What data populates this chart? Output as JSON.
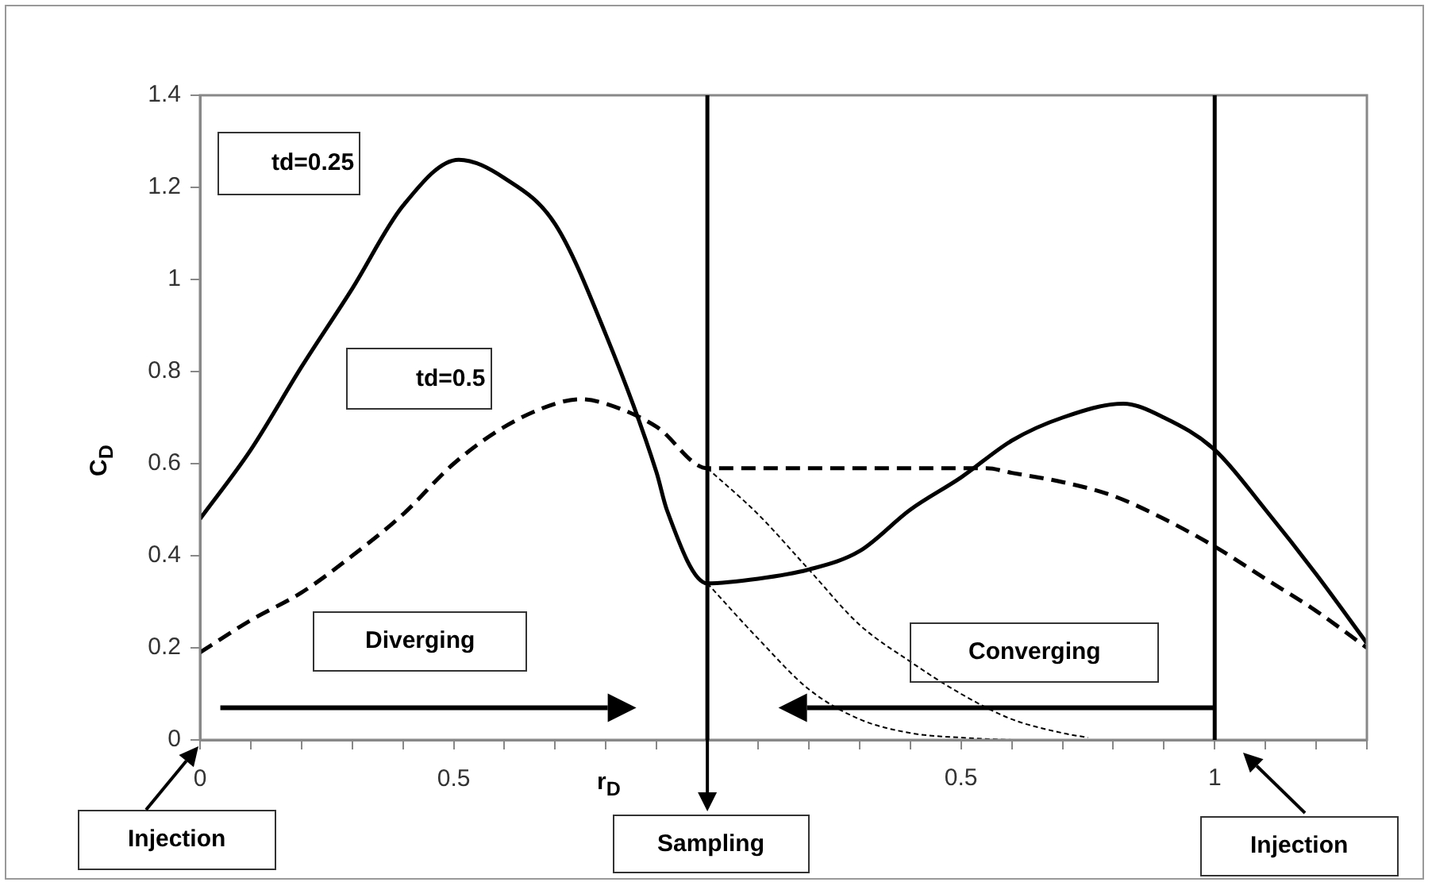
{
  "chart_data": {
    "type": "line",
    "xlabel": "r$_{D}$",
    "ylabel": "C$_{D}$",
    "xlim": [
      0,
      2.3
    ],
    "ylim": [
      0,
      1.4
    ],
    "xticks": [
      0,
      {
        "value": 0.1,
        "label": null
      },
      {
        "value": 0.2,
        "label": null
      },
      {
        "value": 0.3,
        "label": null
      },
      {
        "value": 0.4,
        "label": null
      },
      0.5,
      {
        "value": 0.6,
        "label": null
      },
      {
        "value": 0.7,
        "label": null
      },
      {
        "value": 0.8,
        "label": null
      },
      {
        "value": 0.9,
        "label": null
      },
      {
        "value": 1,
        "label": null
      },
      {
        "value": 1.1,
        "label": null
      },
      {
        "value": 1.2,
        "label": null
      },
      {
        "value": 1.3,
        "label": null
      },
      {
        "value": 1.4,
        "label": null
      },
      {
        "value": 1.5,
        "label": null
      },
      {
        "value": 1.6,
        "label": null
      },
      {
        "value": 1.7,
        "label": null
      },
      {
        "value": 1.8,
        "label": null
      },
      {
        "value": 1.9,
        "label": null
      },
      {
        "value": 2,
        "label": null
      },
      {
        "value": 2.1,
        "label": null
      },
      {
        "value": 2.2,
        "label": null
      },
      {
        "value": 2.3,
        "label": null
      }
    ],
    "x2lim": [
      -1,
      1.3
    ],
    "x2ticks": [
      0.5,
      1
    ],
    "yticks": [
      0,
      0.2,
      0.4,
      0.6,
      0.8,
      1,
      1.2,
      1.4
    ],
    "series": [
      {
        "name": "td=0.25",
        "color": "#000000",
        "line_style": "solid",
        "x": [
          0,
          0.1,
          0.2,
          0.3,
          0.4,
          0.51,
          0.6,
          0.7,
          0.8,
          0.9,
          0.92,
          1,
          1.1,
          1.2,
          1.3,
          1.4,
          1.5,
          1.6,
          1.7,
          1.82,
          1.9,
          2,
          2.1,
          2.2,
          2.3
        ],
        "values": [
          0.48,
          0.63,
          0.81,
          0.98,
          1.16,
          1.26,
          1.22,
          1.12,
          0.88,
          0.58,
          0.5,
          0.34,
          0.35,
          0.37,
          0.41,
          0.5,
          0.57,
          0.65,
          0.7,
          0.73,
          0.7,
          0.63,
          0.5,
          0.36,
          0.21
        ]
      },
      {
        "name": "td=0.5",
        "color": "#000000",
        "line_style": "dashed",
        "x": [
          0,
          0.1,
          0.2,
          0.3,
          0.4,
          0.5,
          0.6,
          0.7,
          0.75,
          0.8,
          0.9,
          1,
          1.2,
          1.4,
          1.55,
          1.6,
          1.7,
          1.8,
          1.9,
          2,
          2.1,
          2.2,
          2.3
        ],
        "values": [
          0.19,
          0.26,
          0.32,
          0.4,
          0.49,
          0.6,
          0.68,
          0.73,
          0.74,
          0.73,
          0.68,
          0.59,
          0.59,
          0.59,
          0.59,
          0.58,
          0.56,
          0.53,
          0.48,
          0.42,
          0.35,
          0.28,
          0.2
        ]
      },
      {
        "color": "#000000",
        "line_style": "dotted",
        "x": [
          1,
          1.1,
          1.2,
          1.3,
          1.4,
          1.5,
          1.6,
          1.7,
          1.75
        ],
        "values": [
          0.59,
          0.49,
          0.37,
          0.25,
          0.17,
          0.1,
          0.045,
          0.015,
          0.005
        ]
      },
      {
        "color": "#000000",
        "line_style": "dotted",
        "x": [
          1,
          1.1,
          1.2,
          1.3,
          1.4,
          1.5,
          1.6
        ],
        "values": [
          0.34,
          0.22,
          0.11,
          0.045,
          0.015,
          0.005,
          0
        ]
      }
    ],
    "ref_lines": [
      {
        "axis": "x",
        "value": 1,
        "color": "#000000"
      },
      {
        "axis": "x",
        "value": 2,
        "color": "#000000"
      }
    ],
    "annotations": [
      "Diverging",
      "Converging",
      "Injection",
      "Sampling",
      "Injection"
    ]
  }
}
